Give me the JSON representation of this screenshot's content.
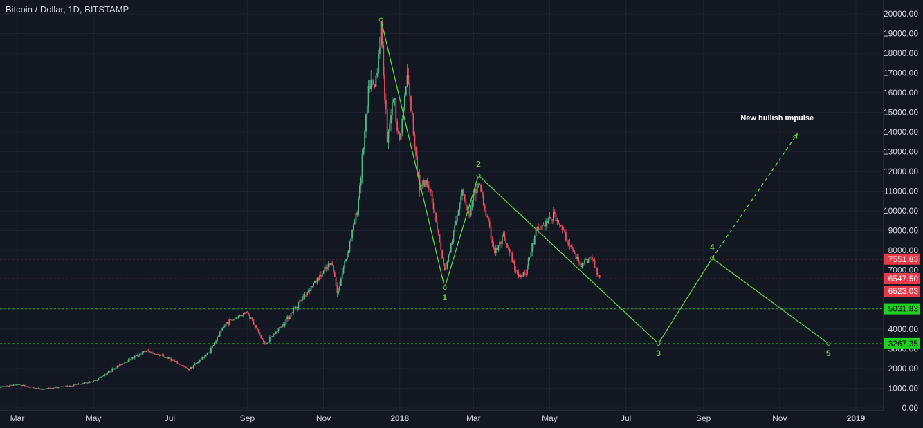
{
  "header": {
    "title": "Bitcoin / Dollar, 1D, BITSTAMP"
  },
  "colors": {
    "background": "#131722",
    "grid": "#1e2230",
    "axis_text": "#d1d4dc",
    "up": "#53b987",
    "down": "#eb4d5c",
    "wave": "#5fd33a",
    "red_level": "#e6394a",
    "green_level": "#1fd11f"
  },
  "chart_data": {
    "type": "candlestick",
    "title": "Bitcoin / Dollar, 1D, BITSTAMP",
    "y_range": [
      0,
      20500
    ],
    "y_ticks": [
      "0.00",
      "1000.00",
      "2000.00",
      "3000.00",
      "4000.00",
      "5000.00",
      "6000.00",
      "7000.00",
      "8000.00",
      "9000.00",
      "10000.00",
      "11000.00",
      "12000.00",
      "13000.00",
      "14000.00",
      "15000.00",
      "16000.00",
      "17000.00",
      "18000.00",
      "19000.00",
      "20000.00"
    ],
    "x_ticks": [
      {
        "label": "Mar",
        "date": "2017-03-01"
      },
      {
        "label": "May",
        "date": "2017-05-01"
      },
      {
        "label": "Jul",
        "date": "2017-07-01"
      },
      {
        "label": "Sep",
        "date": "2017-09-01"
      },
      {
        "label": "Nov",
        "date": "2017-11-01"
      },
      {
        "label": "2018",
        "date": "2018-01-01"
      },
      {
        "label": "Mar",
        "date": "2018-03-01"
      },
      {
        "label": "May",
        "date": "2018-05-01"
      },
      {
        "label": "Jul",
        "date": "2018-07-01"
      },
      {
        "label": "Sep",
        "date": "2018-09-01"
      },
      {
        "label": "Nov",
        "date": "2018-11-01"
      },
      {
        "label": "2019",
        "date": "2019-01-01"
      }
    ],
    "x_range": [
      "2017-02-10",
      "2019-01-18"
    ],
    "price_path": [
      [
        "2017-02-10",
        1000
      ],
      [
        "2017-03-01",
        1200
      ],
      [
        "2017-03-20",
        950
      ],
      [
        "2017-04-15",
        1150
      ],
      [
        "2017-05-01",
        1350
      ],
      [
        "2017-05-25",
        2300
      ],
      [
        "2017-06-12",
        2900
      ],
      [
        "2017-07-01",
        2500
      ],
      [
        "2017-07-16",
        1950
      ],
      [
        "2017-08-01",
        2800
      ],
      [
        "2017-08-15",
        4300
      ],
      [
        "2017-09-01",
        4900
      ],
      [
        "2017-09-15",
        3200
      ],
      [
        "2017-09-30",
        4300
      ],
      [
        "2017-10-20",
        6000
      ],
      [
        "2017-11-08",
        7400
      ],
      [
        "2017-11-12",
        5800
      ],
      [
        "2017-11-28",
        10000
      ],
      [
        "2017-12-08",
        16500
      ],
      [
        "2017-12-12",
        16200
      ],
      [
        "2017-12-17",
        19300
      ],
      [
        "2017-12-22",
        13800
      ],
      [
        "2017-12-27",
        15800
      ],
      [
        "2018-01-01",
        13500
      ],
      [
        "2018-01-07",
        16800
      ],
      [
        "2018-01-17",
        11200
      ],
      [
        "2018-01-25",
        11300
      ],
      [
        "2018-02-06",
        6900
      ],
      [
        "2018-02-12",
        8500
      ],
      [
        "2018-02-20",
        11200
      ],
      [
        "2018-02-25",
        9700
      ],
      [
        "2018-03-05",
        11500
      ],
      [
        "2018-03-18",
        7900
      ],
      [
        "2018-03-25",
        8600
      ],
      [
        "2018-04-06",
        6700
      ],
      [
        "2018-04-12",
        6950
      ],
      [
        "2018-04-20",
        8900
      ],
      [
        "2018-05-05",
        9800
      ],
      [
        "2018-05-15",
        8500
      ],
      [
        "2018-05-25",
        7300
      ],
      [
        "2018-06-03",
        7650
      ],
      [
        "2018-06-10",
        6600
      ]
    ],
    "wave_points": [
      {
        "date": "2017-12-17",
        "y": 19700,
        "label": ""
      },
      {
        "date": "2018-02-06",
        "y": 6100,
        "label": "1"
      },
      {
        "date": "2018-03-05",
        "y": 11800,
        "label": "2"
      },
      {
        "date": "2018-07-27",
        "y": 3267,
        "label": "3"
      },
      {
        "date": "2018-09-08",
        "y": 7600,
        "label": "4"
      },
      {
        "date": "2018-12-10",
        "y": 3267,
        "label": "5"
      }
    ],
    "projection": {
      "from_date": "2018-09-08",
      "from_y": 7600,
      "to_date": "2018-11-15",
      "to_y": 13900
    },
    "annotation": {
      "text": "New bullish impulse",
      "date": "2018-10-30",
      "y": 14600
    },
    "levels": [
      {
        "value": 7551.83,
        "label": "7551.83",
        "kind": "red"
      },
      {
        "value": 6547.5,
        "label": "6547.50",
        "kind": "red"
      },
      {
        "value": 6523.03,
        "label": "6523.03",
        "kind": "red"
      },
      {
        "value": 5031.83,
        "label": "5031.83",
        "kind": "green"
      },
      {
        "value": 3267.35,
        "label": "3267.35",
        "kind": "green"
      }
    ]
  }
}
